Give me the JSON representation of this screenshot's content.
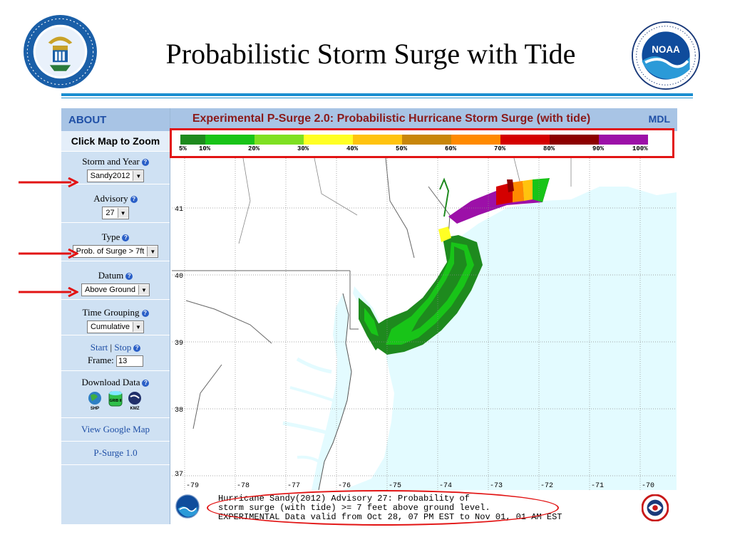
{
  "slide": {
    "title": "Probabilistic Storm Surge with Tide"
  },
  "app": {
    "about": "ABOUT",
    "header_title": "Experimental P-Surge 2.0: Probabilistic Hurricane Storm Surge (with tide)",
    "mdl": "MDL"
  },
  "sidebar": {
    "zoom_label": "Click Map to Zoom",
    "storm_label": "Storm and Year",
    "storm_value": "Sandy2012",
    "advisory_label": "Advisory",
    "advisory_value": "27",
    "type_label": "Type",
    "type_value": "Prob. of Surge > 7ft",
    "datum_label": "Datum",
    "datum_value": "Above Ground",
    "time_label": "Time Grouping",
    "time_value": "Cumulative",
    "start": "Start",
    "sep": "|",
    "stop": "Stop",
    "frame_label": "Frame:",
    "frame_value": "13",
    "download_label": "Download Data",
    "shp": "SHP",
    "grib": "GRIB II",
    "kmz": "KMZ",
    "google_map": "View Google Map",
    "psurge1": "P-Surge 1.0"
  },
  "legend": {
    "colors": [
      "#1e8a1e",
      "#18c418",
      "#7ee022",
      "#ffff24",
      "#ffc30e",
      "#c8860a",
      "#ff8a00",
      "#d40000",
      "#8c0000",
      "#9c10a8"
    ],
    "labels": [
      "5%",
      "10%",
      "20%",
      "30%",
      "40%",
      "50%",
      "60%",
      "70%",
      "80%",
      "90%",
      "100%"
    ]
  },
  "map": {
    "lat_labels": [
      "41",
      "40",
      "39",
      "38",
      "37"
    ],
    "lon_labels": [
      "-79",
      "-78",
      "-77",
      "-76",
      "-75",
      "-74",
      "-73",
      "-72",
      "-71",
      "-70"
    ]
  },
  "footer": {
    "line1": "Hurricane Sandy(2012) Advisory 27: Probability of",
    "line2": "storm surge (with tide) >= 7 feet above ground level.",
    "line3": "EXPERIMENTAL Data valid from Oct 28, 07 PM EST to Nov 01, 01 AM EST"
  },
  "colors": {
    "accent": "#1c8fd0",
    "annotation": "#e21414",
    "ocean": "#e3fbff",
    "land": "#ffffff"
  },
  "icons": [
    "commerce-seal-icon",
    "noaa-logo-icon",
    "help-icon",
    "globe-icon",
    "database-icon",
    "kmz-icon",
    "nws-logo-icon",
    "arrow-icon"
  ]
}
